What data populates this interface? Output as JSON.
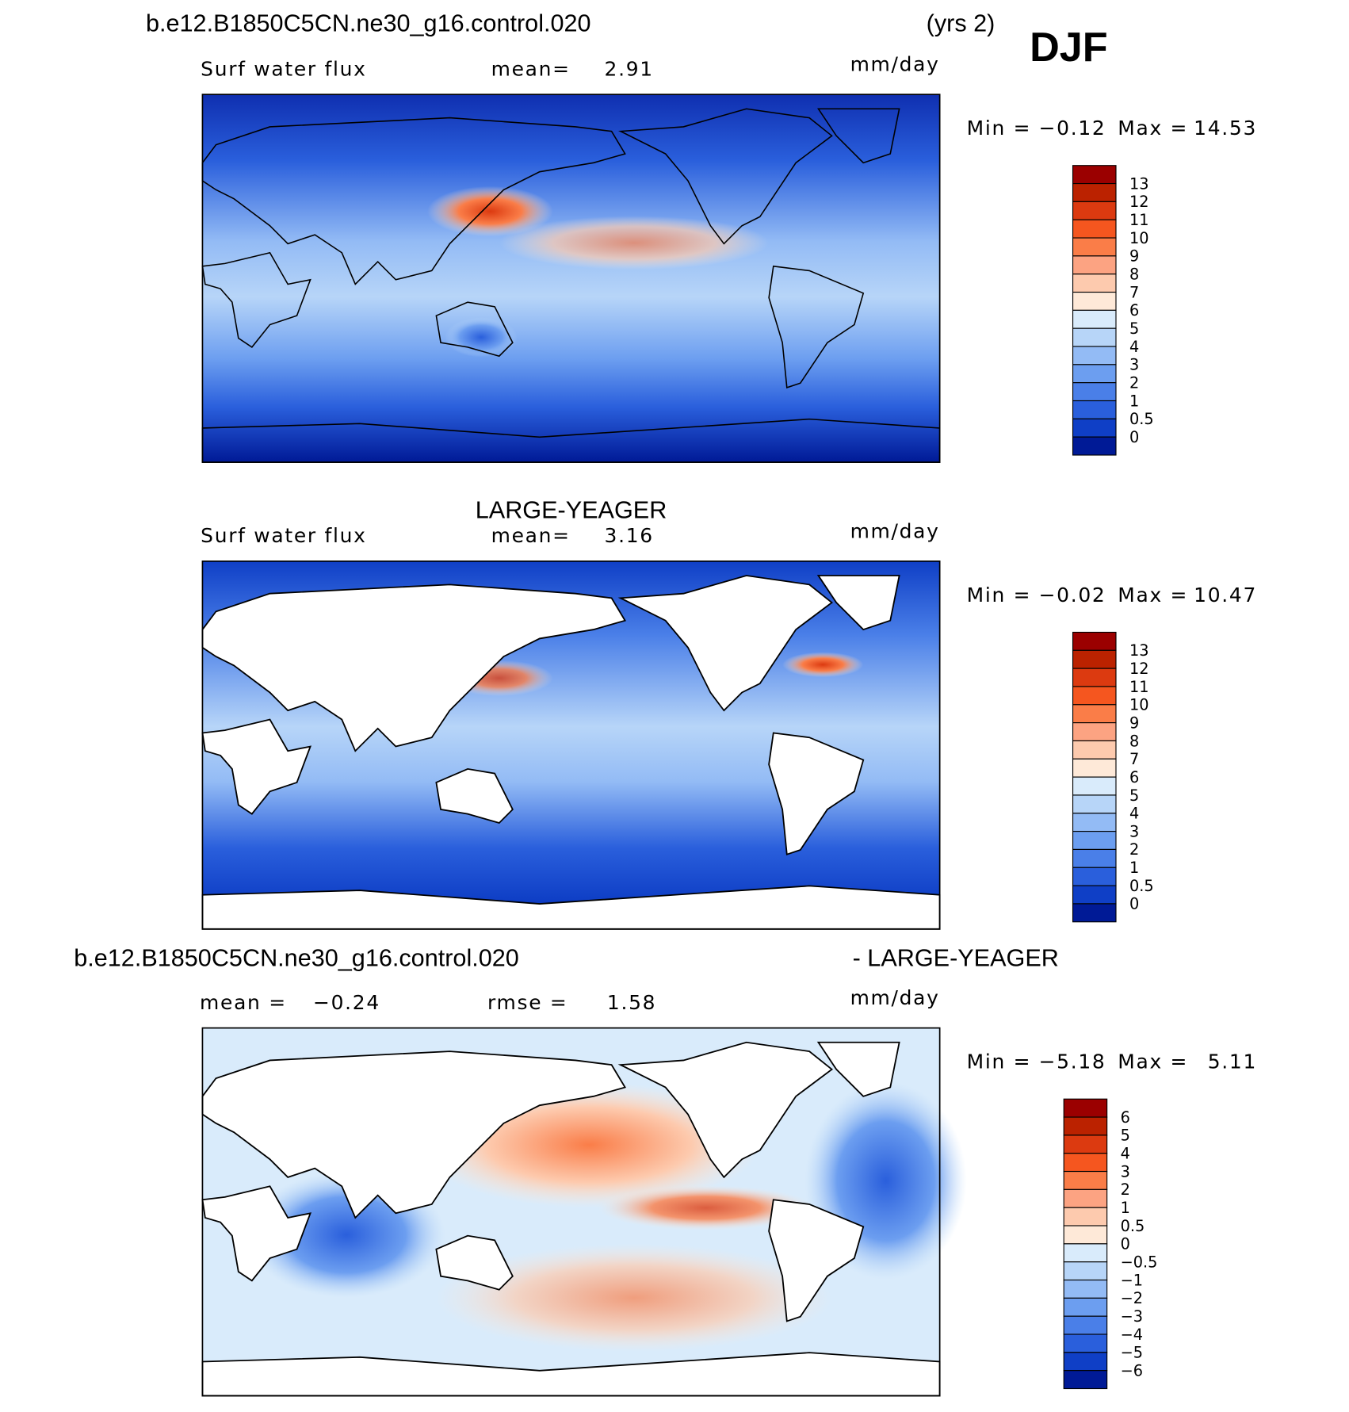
{
  "header": {
    "case": "b.e12.B1850C5CN.ne30_g16.control.020",
    "years": "(yrs 2)",
    "season": "DJF"
  },
  "panels": [
    {
      "variable": "Surf water flux",
      "stats": [
        {
          "label": "mean=",
          "value": "2.91"
        }
      ],
      "units": "mm/day",
      "min_label": "Min =",
      "min": "−0.12",
      "max_label": "Max =",
      "max": "14.53",
      "levels": [
        "13",
        "12",
        "11",
        "10",
        "9",
        "8",
        "7",
        "6",
        "5",
        "4",
        "3",
        "2",
        "1",
        "0.5",
        "0"
      ],
      "colors": [
        "#9b0000",
        "#bb2200",
        "#dc3a10",
        "#f5561f",
        "#fa7d48",
        "#fca382",
        "#fdcaae",
        "#fee9d8",
        "#d9ebfb",
        "#b7d5f8",
        "#93bbf5",
        "#6c9ef0",
        "#4a7fe8",
        "#2a5fdc",
        "#0f3fc6",
        "#001a96"
      ]
    },
    {
      "title": "LARGE-YEAGER",
      "variable": "Surf water flux",
      "stats": [
        {
          "label": "mean=",
          "value": "3.16"
        }
      ],
      "units": "mm/day",
      "min_label": "Min =",
      "min": "−0.02",
      "max_label": "Max =",
      "max": "10.47",
      "levels": [
        "13",
        "12",
        "11",
        "10",
        "9",
        "8",
        "7",
        "6",
        "5",
        "4",
        "3",
        "2",
        "1",
        "0.5",
        "0"
      ],
      "colors": [
        "#9b0000",
        "#bb2200",
        "#dc3a10",
        "#f5561f",
        "#fa7d48",
        "#fca382",
        "#fdcaae",
        "#fee9d8",
        "#d9ebfb",
        "#b7d5f8",
        "#93bbf5",
        "#6c9ef0",
        "#4a7fe8",
        "#2a5fdc",
        "#0f3fc6",
        "#001a96"
      ]
    },
    {
      "title_left": "b.e12.B1850C5CN.ne30_g16.control.020",
      "title_right": "- LARGE-YEAGER",
      "stats": [
        {
          "label": "mean =",
          "value": "−0.24"
        },
        {
          "label": "rmse =",
          "value": "1.58"
        }
      ],
      "units": "mm/day",
      "min_label": "Min =",
      "min": "−5.18",
      "max_label": "Max =",
      "max": "5.11",
      "levels": [
        "6",
        "5",
        "4",
        "3",
        "2",
        "1",
        "0.5",
        "0",
        "−0.5",
        "−1",
        "−2",
        "−3",
        "−4",
        "−5",
        "−6"
      ],
      "colors": [
        "#9b0000",
        "#bb2200",
        "#dc3a10",
        "#f5561f",
        "#fa7d48",
        "#fca382",
        "#fdcaae",
        "#fee9d8",
        "#d9ebfb",
        "#b7d5f8",
        "#93bbf5",
        "#6c9ef0",
        "#4a7fe8",
        "#2a5fdc",
        "#0f3fc6",
        "#001a96"
      ]
    }
  ]
}
